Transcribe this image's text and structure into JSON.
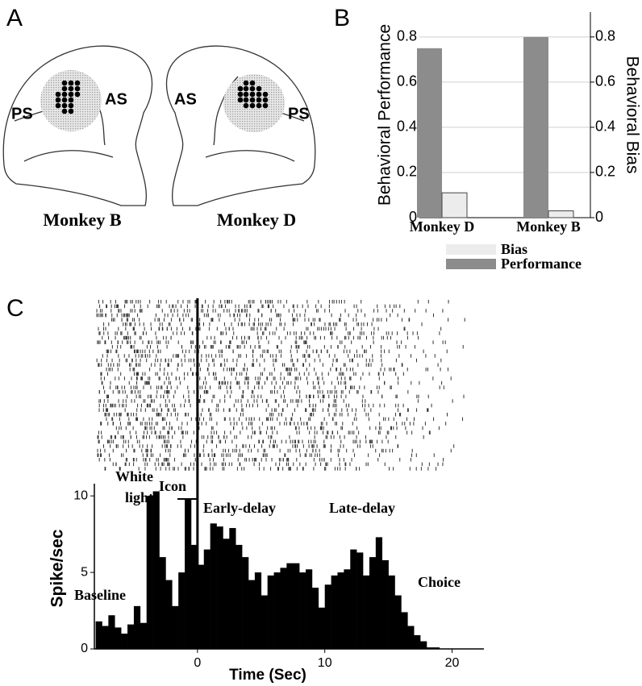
{
  "panel_labels": [
    "A",
    "B",
    "C"
  ],
  "diagram": {
    "left": {
      "labels": [
        "PS",
        "AS"
      ],
      "caption": "Monkey B"
    },
    "right": {
      "labels": [
        "AS",
        "PS"
      ],
      "caption": "Monkey D"
    }
  },
  "chart_data": [
    {
      "type": "bar",
      "categories": [
        "Monkey D",
        "Monkey B"
      ],
      "series": [
        {
          "name": "Performance",
          "color": "#8c8c8c",
          "values": [
            0.75,
            0.8
          ]
        },
        {
          "name": "Bias",
          "color": "#ececec",
          "values": [
            0.11,
            0.03
          ],
          "axis": "y2"
        }
      ],
      "y_label": "Behavioral Performance",
      "y2_label": "Behavioral Bias",
      "ylim": [
        0,
        0.91
      ],
      "yticks": [
        0,
        0.2,
        0.4,
        0.6,
        0.8
      ],
      "y2lim": [
        0,
        0.91
      ],
      "y2ticks": [
        0,
        0.2,
        0.4,
        0.6,
        0.8
      ],
      "grid": true
    },
    {
      "type": "histogram",
      "bins": [
        -8,
        -7.5,
        -7,
        -6.5,
        -6,
        -5.5,
        -5,
        -4.5,
        -4,
        -3.5,
        -3,
        -2.5,
        -2,
        -1.5,
        -1,
        -0.5,
        0,
        0.5,
        1,
        1.5,
        2,
        2.5,
        3,
        3.5,
        4,
        4.5,
        5,
        5.5,
        6,
        6.5,
        7,
        7.5,
        8,
        8.5,
        9,
        9.5,
        10,
        10.5,
        11,
        11.5,
        12,
        12.5,
        13,
        13.5,
        14,
        14.5,
        15,
        15.5,
        16,
        16.5,
        17,
        17.5,
        18,
        18.5,
        19
      ],
      "values": [
        1.8,
        1.5,
        2.2,
        1.4,
        1.0,
        1.6,
        2.8,
        1.7,
        10.0,
        10.3,
        6.0,
        4.5,
        2.8,
        5.0,
        9.8,
        6.8,
        5.5,
        6.5,
        8.2,
        8.0,
        7.2,
        7.9,
        6.8,
        6.0,
        4.5,
        5.0,
        3.5,
        4.8,
        5.0,
        5.3,
        5.6,
        5.6,
        5.0,
        5.2,
        4.0,
        2.7,
        4.2,
        4.8,
        5.0,
        5.2,
        6.5,
        6.3,
        4.8,
        6.0,
        7.3,
        5.8,
        4.8,
        3.5,
        2.4,
        1.5,
        0.9,
        0.5,
        0.1,
        0.1
      ],
      "color": "#000000",
      "x_label": "Time (Sec)",
      "y_label": "Spike/sec",
      "xlim": [
        -8.1,
        22.5
      ],
      "xticks": [
        0,
        10,
        20
      ],
      "ylim": [
        0,
        10.8
      ],
      "yticks": [
        0,
        5,
        10
      ],
      "event_x": 0,
      "annotations": [
        "White light",
        "Icon",
        "Early-delay",
        "Late-delay",
        "Choice",
        "Baseline"
      ]
    }
  ]
}
